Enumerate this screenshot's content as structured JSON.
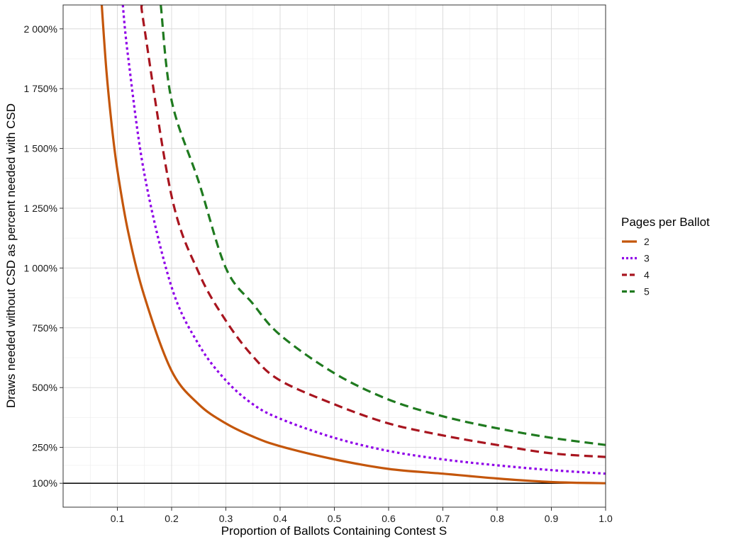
{
  "chart_data": {
    "type": "line",
    "xlabel": "Proportion of Ballots Containing Contest S",
    "ylabel": "Draws needed without CSD as percent needed with CSD",
    "xlim": [
      0,
      1.0
    ],
    "ylim": [
      0,
      2100
    ],
    "x_ticks": [
      0.1,
      0.2,
      0.3,
      0.4,
      0.5,
      0.6,
      0.7,
      0.8,
      0.9,
      1.0
    ],
    "x_tick_labels": [
      "0.1",
      "0.2",
      "0.3",
      "0.4",
      "0.5",
      "0.6",
      "0.7",
      "0.8",
      "0.9",
      "1.0"
    ],
    "y_ticks": [
      100,
      250,
      500,
      750,
      1000,
      1250,
      1500,
      1750,
      2000
    ],
    "y_tick_labels": [
      "100%",
      "250%",
      "500%",
      "750%",
      "1 000%",
      "1 250%",
      "1 500%",
      "1 750%",
      "2 000%"
    ],
    "grid": true,
    "legend": {
      "title": "Pages per Ballot",
      "position": "right"
    },
    "reference_line": {
      "y": 100,
      "color": "#000000"
    },
    "series": [
      {
        "name": "2",
        "color": "#c4560b",
        "dash": "solid",
        "x": [
          0.07,
          0.08,
          0.09,
          0.1,
          0.12,
          0.15,
          0.2,
          0.25,
          0.3,
          0.35,
          0.4,
          0.5,
          0.6,
          0.7,
          0.8,
          0.9,
          1.0
        ],
        "y": [
          2140,
          1820,
          1590,
          1410,
          1150,
          880,
          570,
          430,
          350,
          295,
          255,
          200,
          160,
          140,
          120,
          105,
          100
        ]
      },
      {
        "name": "3",
        "color": "#8f00e8",
        "dash": "dot",
        "x": [
          0.11,
          0.12,
          0.15,
          0.2,
          0.25,
          0.3,
          0.35,
          0.4,
          0.5,
          0.6,
          0.7,
          0.8,
          0.9,
          1.0
        ],
        "y": [
          2100,
          1880,
          1390,
          920,
          680,
          530,
          430,
          370,
          290,
          235,
          200,
          175,
          155,
          140
        ]
      },
      {
        "name": "4",
        "color": "#a8151f",
        "dash": "dash",
        "x": [
          0.145,
          0.15,
          0.2,
          0.25,
          0.3,
          0.35,
          0.4,
          0.5,
          0.6,
          0.7,
          0.8,
          0.9,
          1.0
        ],
        "y": [
          2100,
          2000,
          1300,
          980,
          780,
          630,
          530,
          430,
          350,
          300,
          260,
          225,
          210
        ]
      },
      {
        "name": "5",
        "color": "#1f7a1f",
        "dash": "dash",
        "x": [
          0.18,
          0.2,
          0.25,
          0.3,
          0.35,
          0.4,
          0.5,
          0.6,
          0.7,
          0.8,
          0.9,
          1.0
        ],
        "y": [
          2100,
          1700,
          1360,
          1000,
          850,
          720,
          560,
          450,
          380,
          330,
          290,
          260
        ]
      }
    ]
  }
}
